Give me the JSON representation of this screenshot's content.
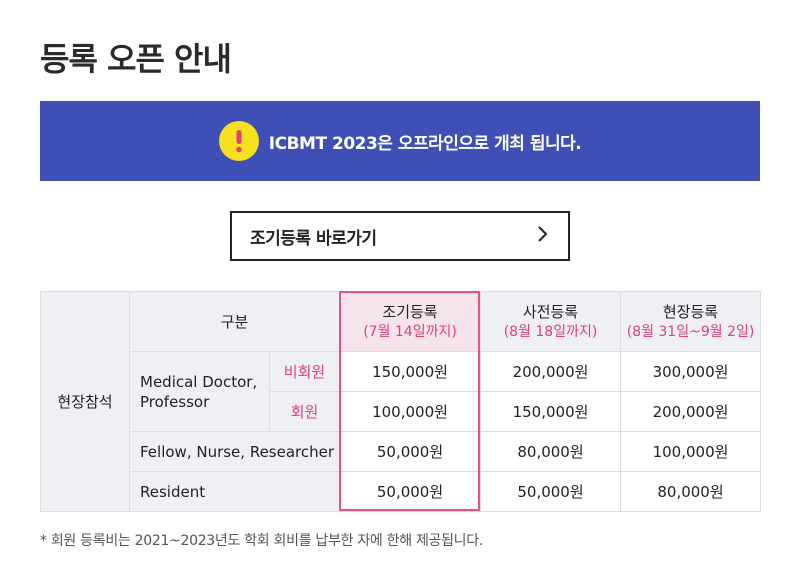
{
  "page": {
    "title": "등록 오픈 안내"
  },
  "notice": {
    "text": "ICBMT 2023은 오프라인으로 개최 됩니다.",
    "icon": "exclamation-icon",
    "bg_color": "#3e4fb5",
    "icon_color": "#f7e01e"
  },
  "cta": {
    "label": "조기등록 바로가기",
    "icon": "chevron-right-icon"
  },
  "table": {
    "section_label": "현장참석",
    "category_header": "구분",
    "columns": [
      {
        "title": "조기등록",
        "period": "(7월 14일까지)"
      },
      {
        "title": "사전등록",
        "period": "(8월 18일까지)"
      },
      {
        "title": "현장등록",
        "period": "(8월 31일~9월 2일)"
      }
    ],
    "rows": [
      {
        "group": "Medical Doctor,",
        "group2": "Professor",
        "sub": "비회원",
        "prices": [
          "150,000원",
          "200,000원",
          "300,000원"
        ]
      },
      {
        "sub": "회원",
        "prices": [
          "100,000원",
          "150,000원",
          "200,000원"
        ]
      },
      {
        "group": "Fellow, Nurse, Researcher",
        "prices": [
          "50,000원",
          "80,000원",
          "100,000원"
        ]
      },
      {
        "group": "Resident",
        "prices": [
          "50,000원",
          "50,000원",
          "80,000원"
        ]
      }
    ]
  },
  "footnote": "* 회원 등록비는 2021~2023년도 학회 회비를 납부한 자에 한해 제공됩니다."
}
